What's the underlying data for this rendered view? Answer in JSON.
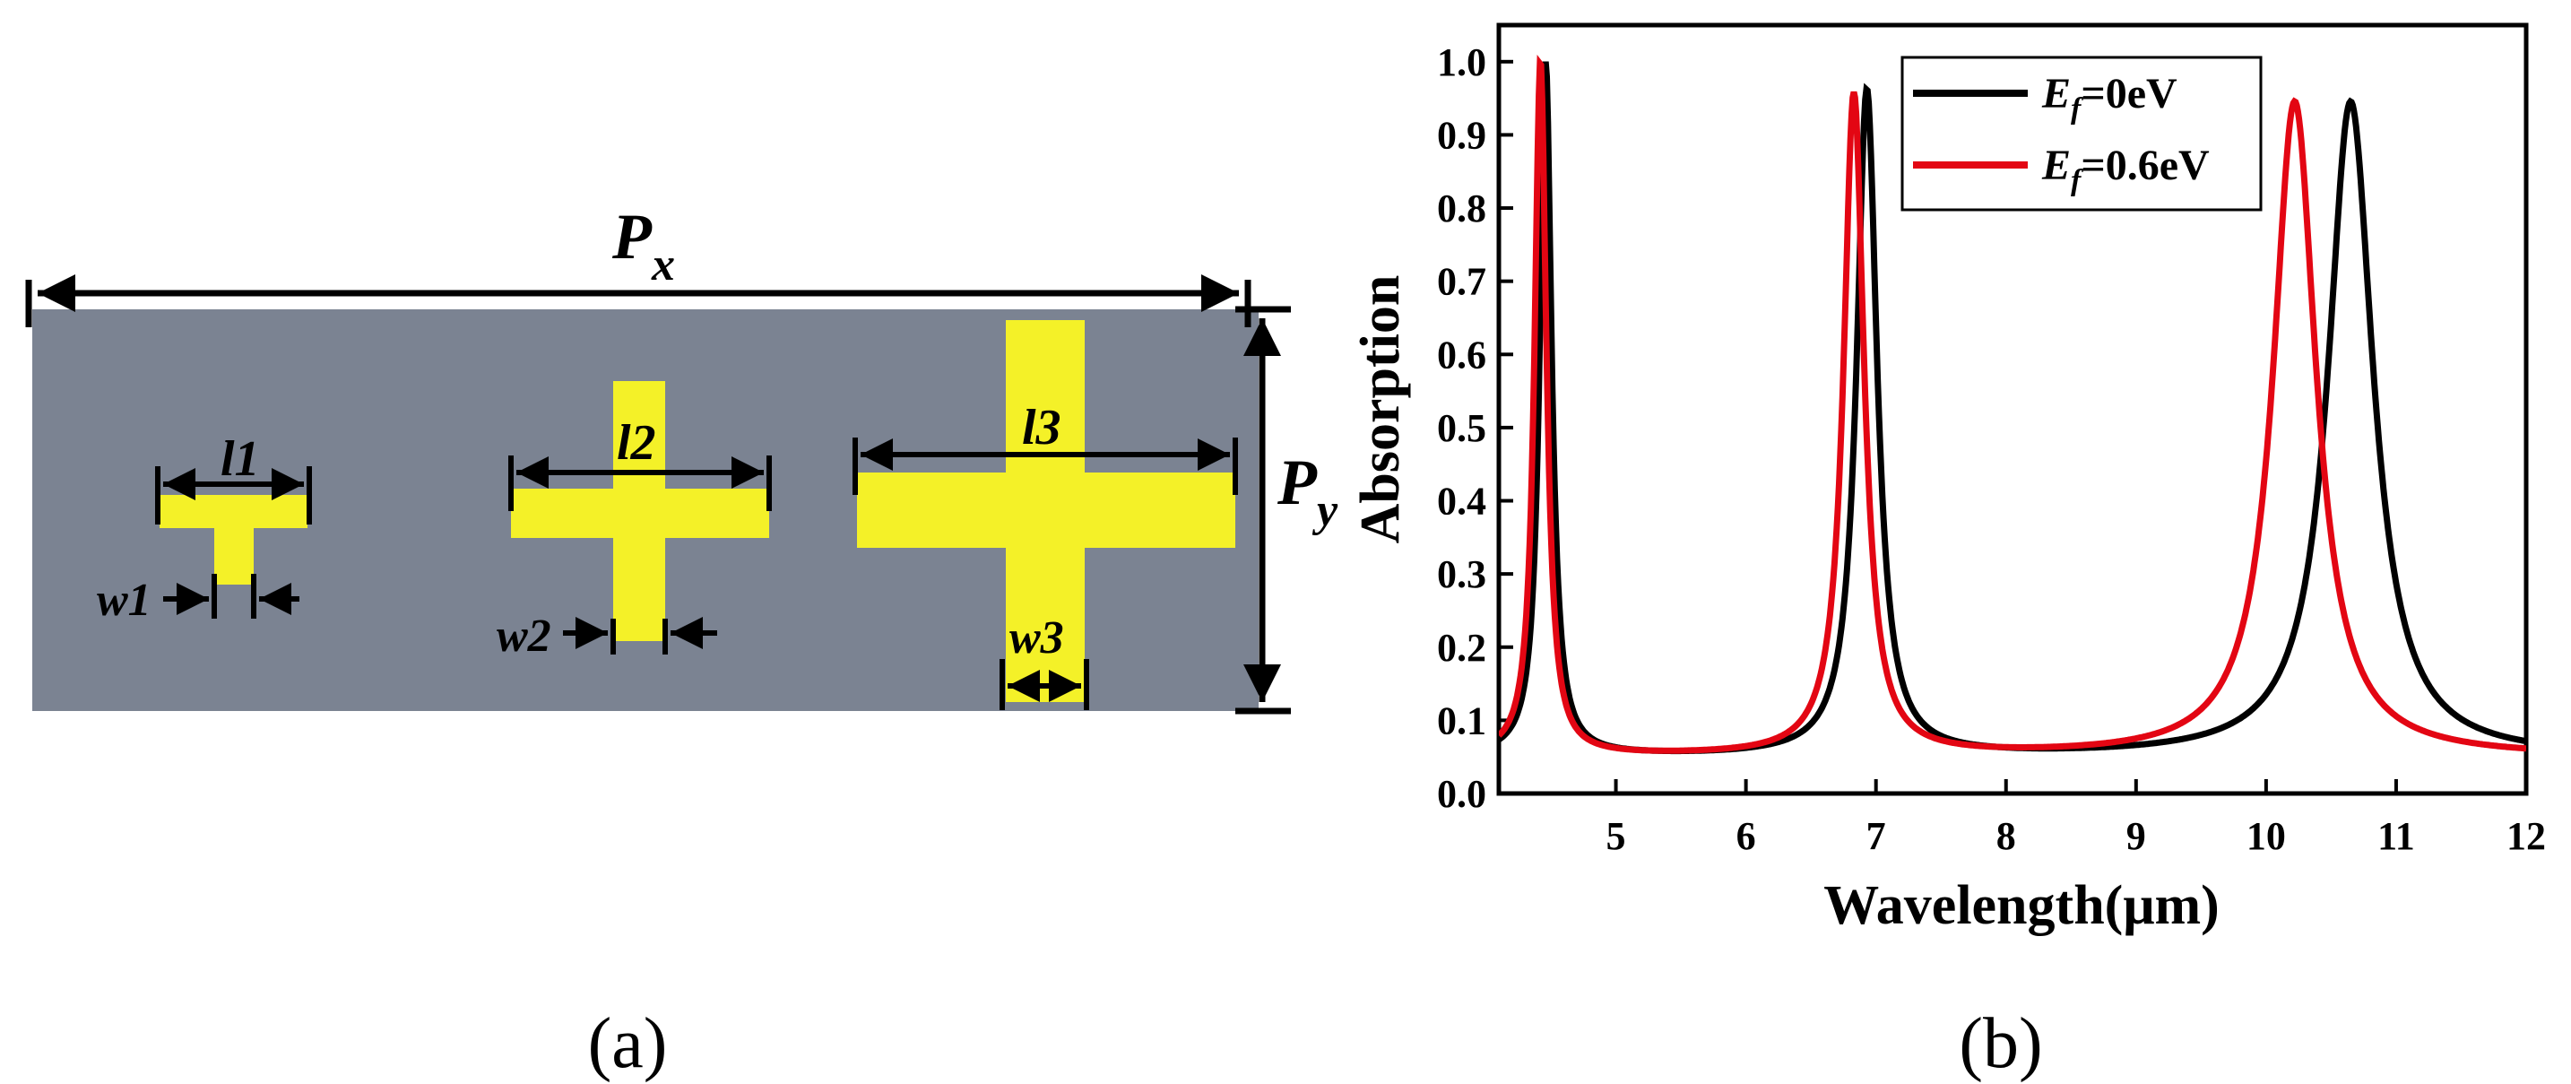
{
  "panel_a": {
    "caption": "(a)",
    "px_main": "P",
    "px_sub": "x",
    "py_main": "P",
    "py_sub": "y",
    "l1": "l1",
    "l2": "l2",
    "l3": "l3",
    "w1": "w1",
    "w2": "w2",
    "w3": "w3",
    "colors": {
      "substrate": "#7b8392",
      "cross": "#f4f128"
    }
  },
  "panel_b": {
    "caption": "(b)"
  },
  "chart_data": {
    "type": "line",
    "xlabel": "Wavelength(μm)",
    "ylabel": "Absorption",
    "xlim": [
      4.1,
      12
    ],
    "ylim": [
      0,
      1.05
    ],
    "xticks": [
      5,
      6,
      7,
      8,
      9,
      10,
      11,
      12
    ],
    "yticks": [
      0.0,
      0.1,
      0.2,
      0.3,
      0.4,
      0.5,
      0.6,
      0.7,
      0.8,
      0.9,
      1.0
    ],
    "legend_position": "top-right",
    "grid": false,
    "series": [
      {
        "name": "Ef=0eV",
        "legend_main": "E",
        "legend_sub": "f",
        "legend_rest": "=0eV",
        "color": "#000000",
        "peaks": [
          {
            "center": 4.46,
            "height": 1.0,
            "width": 0.11
          },
          {
            "center": 6.93,
            "height": 0.96,
            "width": 0.19
          },
          {
            "center": 10.65,
            "height": 0.945,
            "width": 0.42
          }
        ],
        "x": [
          4.1,
          4.3,
          4.4,
          4.46,
          4.55,
          4.7,
          5.0,
          5.5,
          6.0,
          6.5,
          6.8,
          6.93,
          7.1,
          7.5,
          8.0,
          8.5,
          9.0,
          9.5,
          10.0,
          10.4,
          10.65,
          11.0,
          11.5,
          12.0
        ],
        "y": [
          0.13,
          0.5,
          0.9,
          1.0,
          0.85,
          0.35,
          0.11,
          0.07,
          0.08,
          0.17,
          0.62,
          0.96,
          0.6,
          0.19,
          0.1,
          0.08,
          0.09,
          0.13,
          0.26,
          0.63,
          0.945,
          0.62,
          0.25,
          0.12
        ]
      },
      {
        "name": "Ef=0.6eV",
        "legend_main": "E",
        "legend_sub": "f",
        "legend_rest": "=0.6eV",
        "color": "#e30613",
        "peaks": [
          {
            "center": 4.42,
            "height": 1.0,
            "width": 0.11
          },
          {
            "center": 6.83,
            "height": 0.955,
            "width": 0.19
          },
          {
            "center": 10.22,
            "height": 0.945,
            "width": 0.4
          }
        ],
        "x": [
          4.1,
          4.3,
          4.42,
          4.5,
          4.7,
          5.0,
          5.5,
          6.0,
          6.5,
          6.83,
          7.0,
          7.5,
          8.0,
          8.5,
          9.0,
          9.5,
          10.0,
          10.22,
          10.5,
          11.0,
          11.5,
          12.0
        ],
        "y": [
          0.15,
          0.7,
          1.0,
          0.8,
          0.3,
          0.1,
          0.07,
          0.09,
          0.25,
          0.955,
          0.6,
          0.16,
          0.1,
          0.09,
          0.12,
          0.25,
          0.75,
          0.945,
          0.6,
          0.22,
          0.12,
          0.08
        ]
      }
    ]
  }
}
